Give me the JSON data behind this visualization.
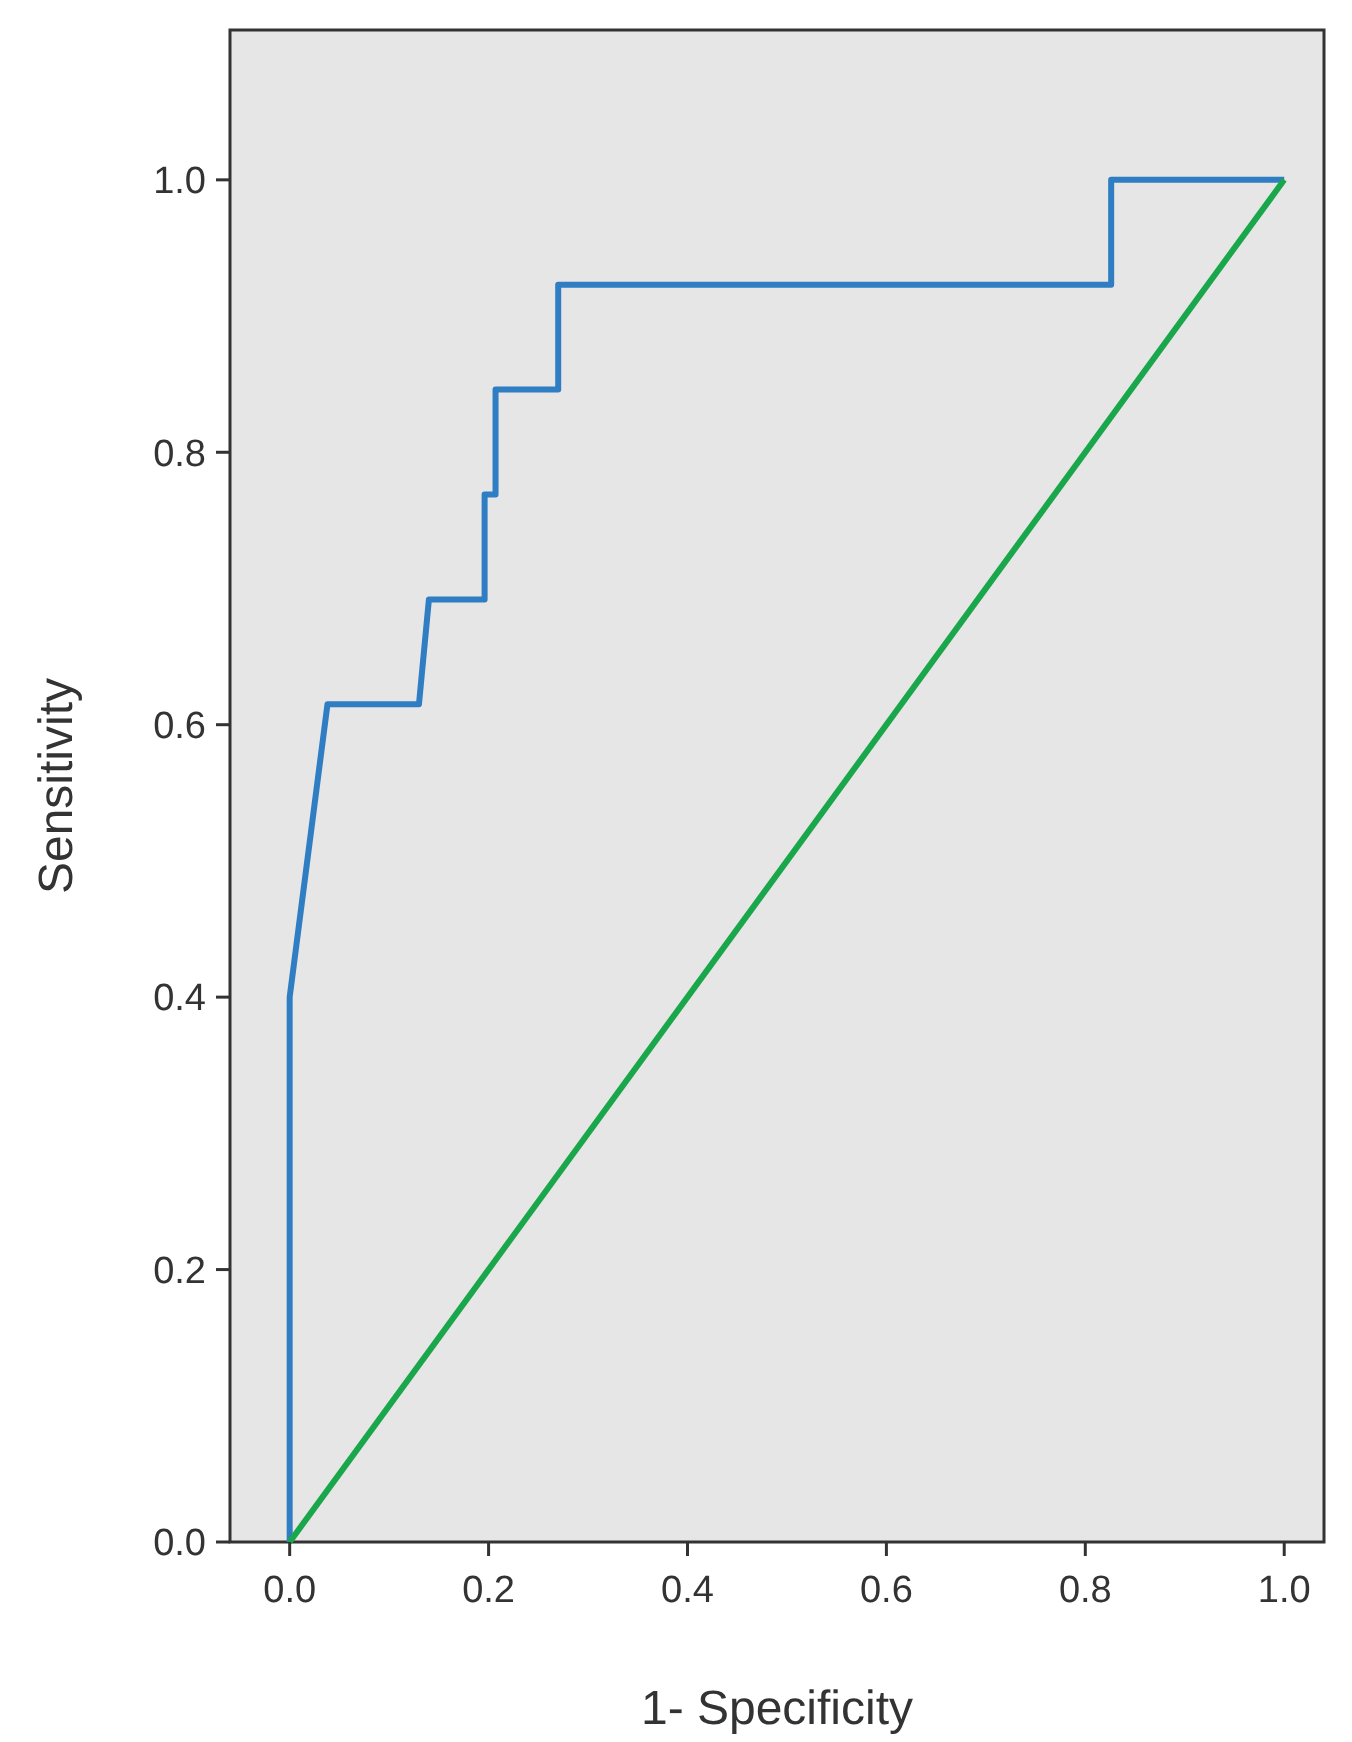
{
  "chart_data": {
    "type": "line",
    "xlabel": "1- Specificity",
    "ylabel": "Sensitivity",
    "xlim": [
      -0.06,
      1.04
    ],
    "ylim": [
      0,
      1.11
    ],
    "xticks": [
      {
        "value": 0,
        "label": "0.0"
      },
      {
        "value": 0.2,
        "label": "0.2"
      },
      {
        "value": 0.4,
        "label": "0.4"
      },
      {
        "value": 0.6,
        "label": "0.6"
      },
      {
        "value": 0.8,
        "label": "0.8"
      },
      {
        "value": 1,
        "label": "1.0"
      }
    ],
    "yticks": [
      {
        "value": 0,
        "label": "0.0"
      },
      {
        "value": 0.2,
        "label": "0.2"
      },
      {
        "value": 0.4,
        "label": "0.4"
      },
      {
        "value": 0.6,
        "label": "0.6"
      },
      {
        "value": 0.8,
        "label": "0.8"
      },
      {
        "value": 1,
        "label": "1.0"
      }
    ],
    "grid": false,
    "marker": "none",
    "line_style": "solid",
    "series": [
      {
        "color": "#2f7dc2",
        "x": [
          0,
          0,
          0.038,
          0.13,
          0.14,
          0.196,
          0.196,
          0.207,
          0.207,
          0.27,
          0.27,
          0.826,
          0.826,
          1
        ],
        "values": [
          0,
          0.4,
          0.615,
          0.615,
          0.692,
          0.692,
          0.769,
          0.769,
          0.846,
          0.846,
          0.923,
          0.923,
          1,
          1
        ]
      },
      {
        "color": "#1aa64a",
        "x": [
          0,
          1
        ],
        "values": [
          0,
          1
        ]
      }
    ]
  }
}
